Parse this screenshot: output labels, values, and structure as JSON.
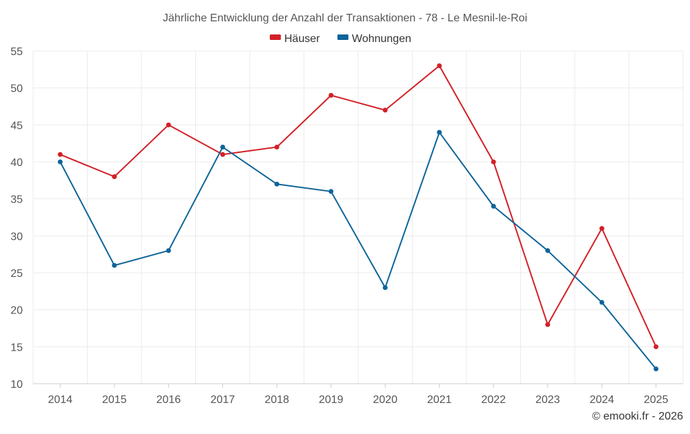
{
  "chart_data": {
    "type": "line",
    "title": "Jährliche Entwicklung der Anzahl der Transaktionen - 78 - Le Mesnil-le-Roi",
    "categories": [
      "2014",
      "2015",
      "2016",
      "2017",
      "2018",
      "2019",
      "2020",
      "2021",
      "2022",
      "2023",
      "2024",
      "2025"
    ],
    "series": [
      {
        "name": "Häuser",
        "color": "#d32027",
        "values": [
          41,
          38,
          45,
          41,
          42,
          49,
          47,
          53,
          40,
          18,
          31,
          15
        ]
      },
      {
        "name": "Wohnungen",
        "color": "#0e6499",
        "values": [
          40,
          26,
          28,
          42,
          37,
          36,
          23,
          44,
          34,
          28,
          21,
          12
        ]
      }
    ],
    "xlabel": "",
    "ylabel": "",
    "ylim": [
      10,
      55
    ],
    "yticks": [
      10,
      15,
      20,
      25,
      30,
      35,
      40,
      45,
      50,
      55
    ],
    "ytick_labels": [
      "10",
      "15",
      "20",
      "25",
      "30",
      "35",
      "40",
      "45",
      "50",
      "55"
    ],
    "grid": true,
    "legend_position": "top-center"
  },
  "credit": "© emooki.fr - 2026"
}
